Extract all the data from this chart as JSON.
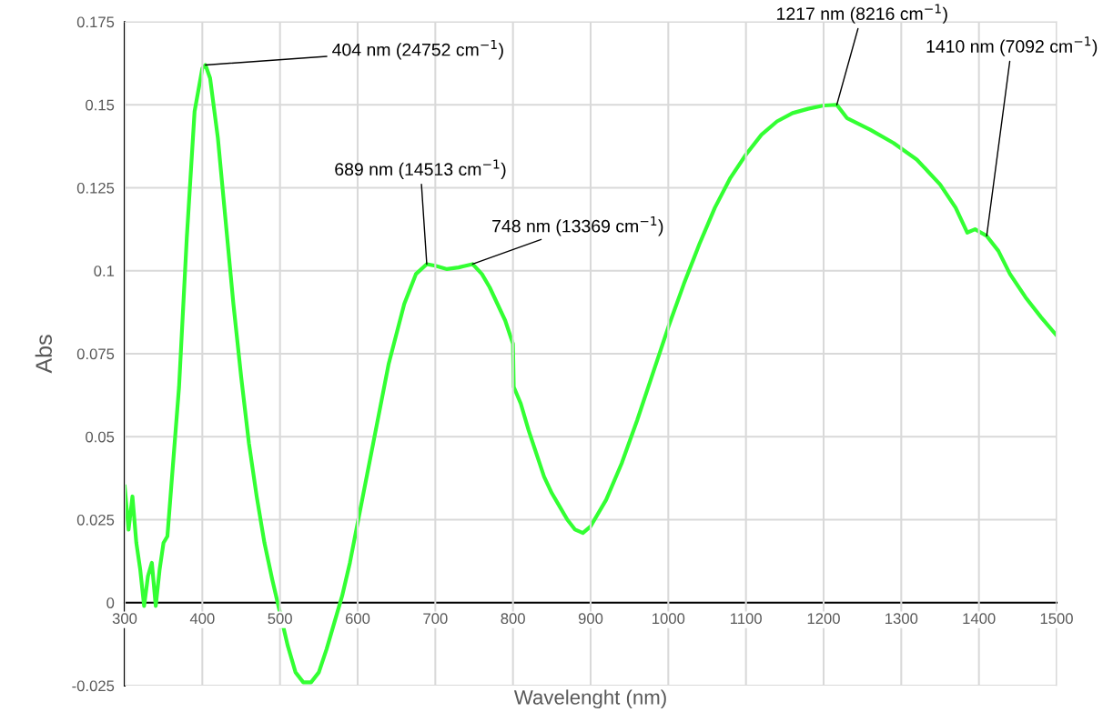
{
  "chart_data": {
    "type": "line",
    "xlabel": "Wavelenght (nm)",
    "ylabel": "Abs",
    "series": [
      {
        "color": "#33ff33",
        "x": [
          300,
          305,
          310,
          315,
          320,
          325,
          330,
          335,
          340,
          345,
          350,
          355,
          360,
          370,
          380,
          390,
          400,
          404,
          410,
          420,
          430,
          440,
          450,
          460,
          470,
          480,
          490,
          500,
          510,
          520,
          530,
          540,
          550,
          560,
          570,
          580,
          590,
          600,
          620,
          640,
          660,
          675,
          689,
          700,
          715,
          730,
          748,
          760,
          770,
          780,
          790,
          800,
          801,
          810,
          820,
          830,
          840,
          850,
          860,
          870,
          880,
          890,
          900,
          920,
          940,
          960,
          980,
          1000,
          1020,
          1040,
          1060,
          1080,
          1100,
          1120,
          1140,
          1160,
          1180,
          1200,
          1217,
          1230,
          1260,
          1290,
          1320,
          1350,
          1370,
          1385,
          1395,
          1410,
          1425,
          1440,
          1460,
          1480,
          1500
        ],
        "values": [
          0.035,
          0.022,
          0.032,
          0.018,
          0.01,
          -0.001,
          0.008,
          0.012,
          -0.001,
          0.01,
          0.018,
          0.02,
          0.035,
          0.065,
          0.11,
          0.148,
          0.161,
          0.162,
          0.158,
          0.14,
          0.115,
          0.09,
          0.068,
          0.048,
          0.032,
          0.018,
          0.007,
          -0.003,
          -0.013,
          -0.021,
          -0.024,
          -0.024,
          -0.021,
          -0.014,
          -0.006,
          0.002,
          0.012,
          0.024,
          0.048,
          0.072,
          0.09,
          0.099,
          0.102,
          0.1015,
          0.1005,
          0.101,
          0.102,
          0.099,
          0.095,
          0.09,
          0.085,
          0.078,
          0.065,
          0.06,
          0.052,
          0.045,
          0.038,
          0.033,
          0.029,
          0.025,
          0.022,
          0.021,
          0.023,
          0.031,
          0.042,
          0.055,
          0.069,
          0.083,
          0.096,
          0.108,
          0.119,
          0.128,
          0.135,
          0.141,
          0.145,
          0.1475,
          0.1488,
          0.1498,
          0.15,
          0.146,
          0.1425,
          0.1385,
          0.1335,
          0.126,
          0.119,
          0.1115,
          0.1125,
          0.1105,
          0.106,
          0.099,
          0.092,
          0.086,
          0.0805
        ]
      }
    ],
    "xlim": [
      300,
      1500
    ],
    "xticks": [
      300,
      400,
      500,
      600,
      700,
      800,
      900,
      1000,
      1100,
      1200,
      1300,
      1400,
      1500
    ],
    "ylim": [
      -0.025,
      0.175
    ],
    "yticks": [
      -0.025,
      0,
      0.025,
      0.05,
      0.075,
      0.1,
      0.125,
      0.15,
      0.175
    ],
    "grid": true,
    "legend": false,
    "annotations": [
      {
        "text": "404 nm (24752 cm$^{−1}$)",
        "x": 404,
        "y": 0.162
      },
      {
        "text": "689 nm (14513 cm$^{−1}$)",
        "x": 689,
        "y": 0.102
      },
      {
        "text": "748 nm (13369 cm$^{−1}$)",
        "x": 748,
        "y": 0.102
      },
      {
        "text": "1217 nm (8216 cm$^{−1}$)",
        "x": 1217,
        "y": 0.15
      },
      {
        "text": "1410 nm (7092 cm$^{−1}$)",
        "x": 1410,
        "y": 0.1105
      }
    ]
  }
}
